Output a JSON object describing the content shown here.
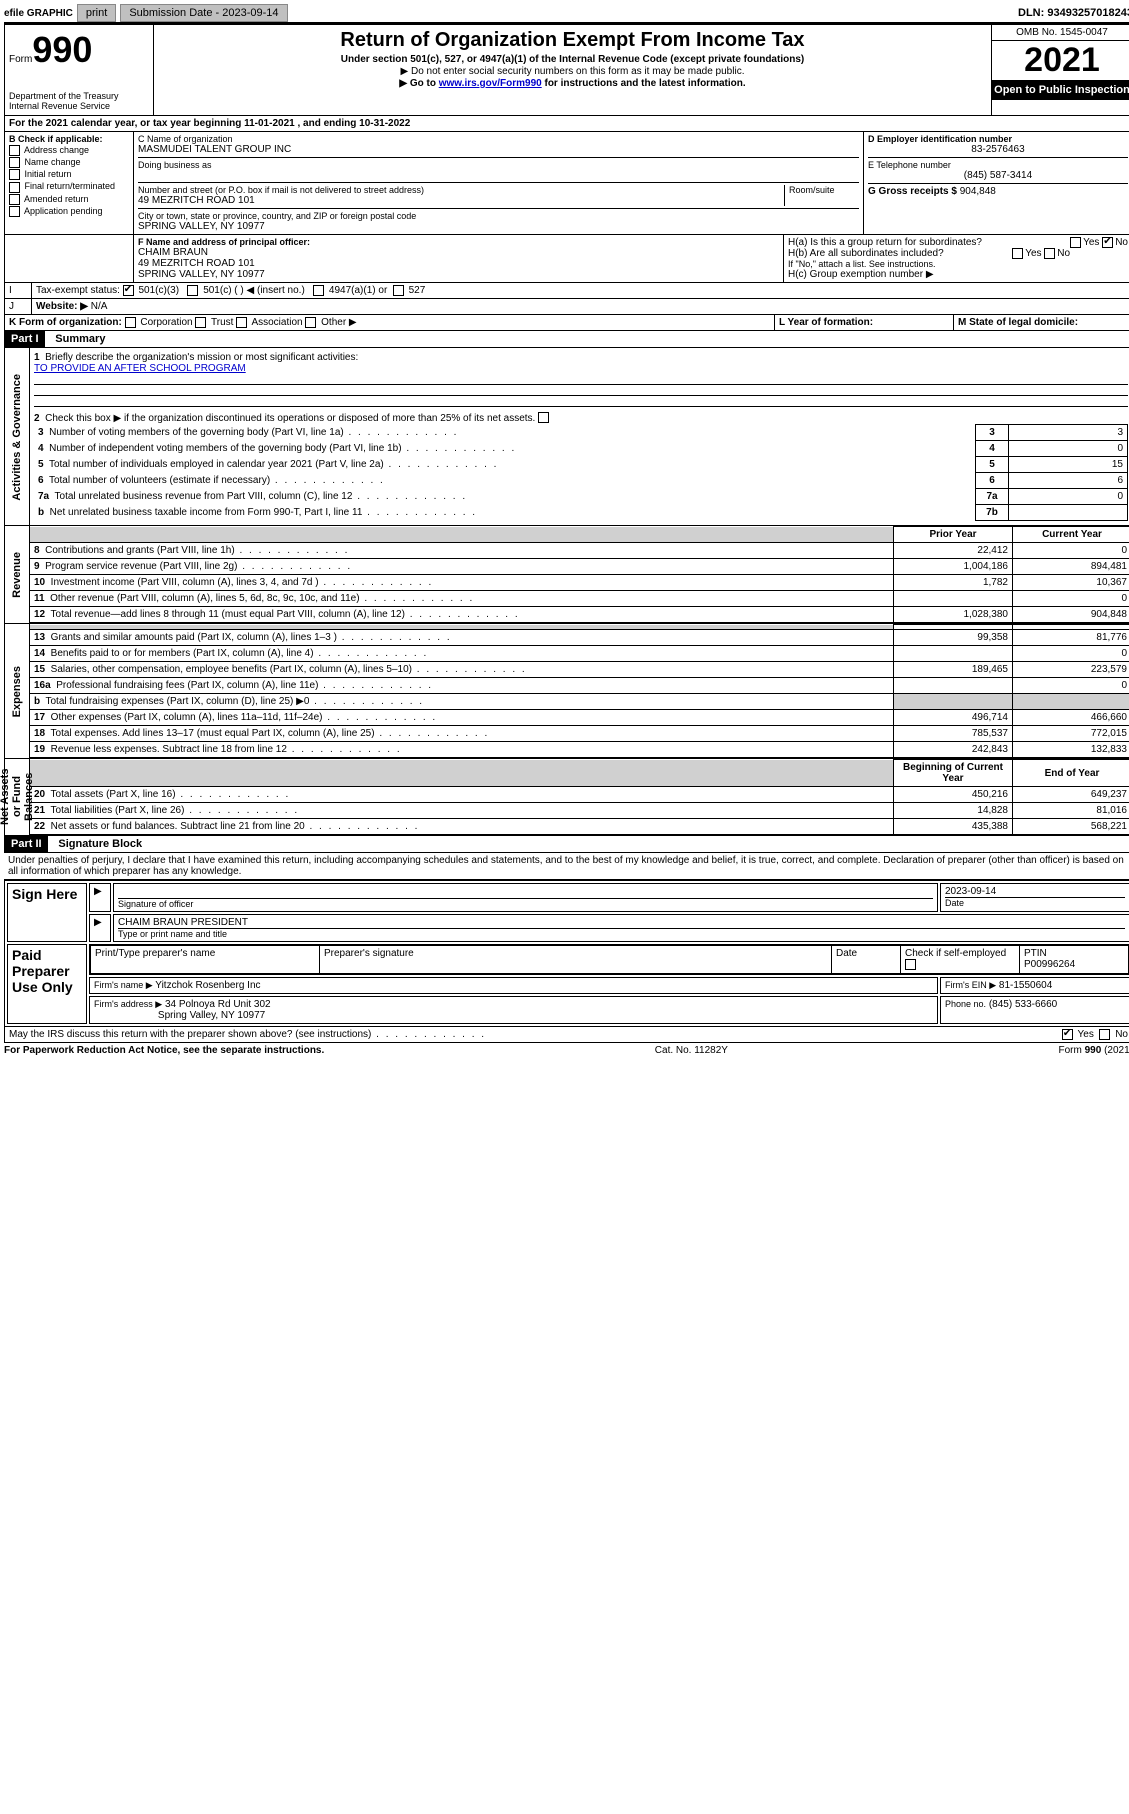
{
  "topbar": {
    "efile": "efile GRAPHIC",
    "print": "print",
    "sub_label": "Submission Date - 2023-09-14",
    "dln": "DLN: 93493257018243"
  },
  "header": {
    "form_word": "Form",
    "form_num": "990",
    "title": "Return of Organization Exempt From Income Tax",
    "sub1": "Under section 501(c), 527, or 4947(a)(1) of the Internal Revenue Code (except private foundations)",
    "sub2": "▶ Do not enter social security numbers on this form as it may be made public.",
    "sub3_pre": "▶ Go to ",
    "sub3_link": "www.irs.gov/Form990",
    "sub3_post": " for instructions and the latest information.",
    "omb": "OMB No. 1545-0047",
    "year": "2021",
    "inspect": "Open to Public Inspection",
    "dept": "Department of the Treasury\nInternal Revenue Service"
  },
  "lineA": "For the 2021 calendar year, or tax year beginning 11-01-2021   , and ending 10-31-2022",
  "boxB": {
    "label": "B Check if applicable:",
    "items": [
      "Address change",
      "Name change",
      "Initial return",
      "Final return/terminated",
      "Amended return",
      "Application pending"
    ]
  },
  "boxC": {
    "label": "C Name of organization",
    "name": "MASMUDEI TALENT GROUP INC",
    "dba_label": "Doing business as",
    "addr_label": "Number and street (or P.O. box if mail is not delivered to street address)",
    "room_label": "Room/suite",
    "addr": "49 MEZRITCH ROAD 101",
    "city_label": "City or town, state or province, country, and ZIP or foreign postal code",
    "city": "SPRING VALLEY, NY  10977"
  },
  "boxD": {
    "label": "D Employer identification number",
    "val": "83-2576463"
  },
  "boxE": {
    "label": "E Telephone number",
    "val": "(845) 587-3414"
  },
  "boxG": {
    "label": "G Gross receipts $",
    "val": "904,848"
  },
  "boxF": {
    "label": "F  Name and address of principal officer:",
    "name": "CHAIM BRAUN",
    "addr1": "49 MEZRITCH ROAD 101",
    "addr2": "SPRING VALLEY, NY  10977"
  },
  "boxH": {
    "a": "H(a)  Is this a group return for subordinates?",
    "b": "H(b)  Are all subordinates included?",
    "b2": "If \"No,\" attach a list. See instructions.",
    "c": "H(c)  Group exemption number ▶",
    "yes": "Yes",
    "no": "No"
  },
  "boxI": {
    "label": "Tax-exempt status:",
    "o1": "501(c)(3)",
    "o2": "501(c) (  ) ◀ (insert no.)",
    "o3": "4947(a)(1) or",
    "o4": "527"
  },
  "boxJ": {
    "label": "Website: ▶",
    "val": "N/A"
  },
  "boxK": {
    "label": "K Form of organization:",
    "o1": "Corporation",
    "o2": "Trust",
    "o3": "Association",
    "o4": "Other ▶"
  },
  "boxL": {
    "label": "L Year of formation:"
  },
  "boxM": {
    "label": "M State of legal domicile:"
  },
  "part1": {
    "hdr": "Part I",
    "title": "Summary"
  },
  "summary": {
    "l1": "Briefly describe the organization's mission or most significant activities:",
    "l1v": "TO PROVIDE AN AFTER SCHOOL PROGRAM",
    "l2": "Check this box ▶        if the organization discontinued its operations or disposed of more than 25% of its net assets.",
    "rows_gov": [
      {
        "n": "3",
        "t": "Number of voting members of the governing body (Part VI, line 1a)",
        "box": "3",
        "v": "3"
      },
      {
        "n": "4",
        "t": "Number of independent voting members of the governing body (Part VI, line 1b)",
        "box": "4",
        "v": "0"
      },
      {
        "n": "5",
        "t": "Total number of individuals employed in calendar year 2021 (Part V, line 2a)",
        "box": "5",
        "v": "15"
      },
      {
        "n": "6",
        "t": "Total number of volunteers (estimate if necessary)",
        "box": "6",
        "v": "6"
      },
      {
        "n": "7a",
        "t": "Total unrelated business revenue from Part VIII, column (C), line 12",
        "box": "7a",
        "v": "0"
      },
      {
        "n": "b",
        "t": "Net unrelated business taxable income from Form 990-T, Part I, line 11",
        "box": "7b",
        "v": ""
      }
    ],
    "col_prior": "Prior Year",
    "col_curr": "Current Year",
    "rows_rev": [
      {
        "n": "8",
        "t": "Contributions and grants (Part VIII, line 1h)",
        "p": "22,412",
        "c": "0"
      },
      {
        "n": "9",
        "t": "Program service revenue (Part VIII, line 2g)",
        "p": "1,004,186",
        "c": "894,481"
      },
      {
        "n": "10",
        "t": "Investment income (Part VIII, column (A), lines 3, 4, and 7d )",
        "p": "1,782",
        "c": "10,367"
      },
      {
        "n": "11",
        "t": "Other revenue (Part VIII, column (A), lines 5, 6d, 8c, 9c, 10c, and 11e)",
        "p": "",
        "c": "0"
      },
      {
        "n": "12",
        "t": "Total revenue—add lines 8 through 11 (must equal Part VIII, column (A), line 12)",
        "p": "1,028,380",
        "c": "904,848"
      }
    ],
    "rows_exp": [
      {
        "n": "13",
        "t": "Grants and similar amounts paid (Part IX, column (A), lines 1–3 )",
        "p": "99,358",
        "c": "81,776"
      },
      {
        "n": "14",
        "t": "Benefits paid to or for members (Part IX, column (A), line 4)",
        "p": "",
        "c": "0"
      },
      {
        "n": "15",
        "t": "Salaries, other compensation, employee benefits (Part IX, column (A), lines 5–10)",
        "p": "189,465",
        "c": "223,579"
      },
      {
        "n": "16a",
        "t": "Professional fundraising fees (Part IX, column (A), line 11e)",
        "p": "",
        "c": "0"
      },
      {
        "n": "b",
        "t": "Total fundraising expenses (Part IX, column (D), line 25) ▶0",
        "p": "shade",
        "c": "shade"
      },
      {
        "n": "17",
        "t": "Other expenses (Part IX, column (A), lines 11a–11d, 11f–24e)",
        "p": "496,714",
        "c": "466,660"
      },
      {
        "n": "18",
        "t": "Total expenses. Add lines 13–17 (must equal Part IX, column (A), line 25)",
        "p": "785,537",
        "c": "772,015"
      },
      {
        "n": "19",
        "t": "Revenue less expenses. Subtract line 18 from line 12",
        "p": "242,843",
        "c": "132,833"
      }
    ],
    "col_beg": "Beginning of Current Year",
    "col_end": "End of Year",
    "rows_net": [
      {
        "n": "20",
        "t": "Total assets (Part X, line 16)",
        "p": "450,216",
        "c": "649,237"
      },
      {
        "n": "21",
        "t": "Total liabilities (Part X, line 26)",
        "p": "14,828",
        "c": "81,016"
      },
      {
        "n": "22",
        "t": "Net assets or fund balances. Subtract line 21 from line 20",
        "p": "435,388",
        "c": "568,221"
      }
    ],
    "side_gov": "Activities & Governance",
    "side_rev": "Revenue",
    "side_exp": "Expenses",
    "side_net": "Net Assets or Fund Balances"
  },
  "part2": {
    "hdr": "Part II",
    "title": "Signature Block"
  },
  "sig": {
    "decl": "Under penalties of perjury, I declare that I have examined this return, including accompanying schedules and statements, and to the best of my knowledge and belief, it is true, correct, and complete. Declaration of preparer (other than officer) is based on all information of which preparer has any knowledge.",
    "sign_here": "Sign Here",
    "sig_officer": "Signature of officer",
    "date": "2023-09-14",
    "date_lbl": "Date",
    "name_title": "CHAIM BRAUN  PRESIDENT",
    "name_title_lbl": "Type or print name and title",
    "paid": "Paid Preparer Use Only",
    "pt_name_lbl": "Print/Type preparer's name",
    "pt_sig_lbl": "Preparer's signature",
    "pt_date_lbl": "Date",
    "pt_check": "Check       if self-employed",
    "ptin_lbl": "PTIN",
    "ptin": "P00996264",
    "firm_name_lbl": "Firm's name    ▶",
    "firm_name": "Yitzchok Rosenberg Inc",
    "firm_ein_lbl": "Firm's EIN ▶",
    "firm_ein": "81-1550604",
    "firm_addr_lbl": "Firm's address ▶",
    "firm_addr1": "34 Polnoya Rd Unit 302",
    "firm_addr2": "Spring Valley, NY  10977",
    "phone_lbl": "Phone no.",
    "phone": "(845) 533-6660",
    "discuss": "May the IRS discuss this return with the preparer shown above? (see instructions)",
    "yes": "Yes",
    "no": "No"
  },
  "footer": {
    "pra": "For Paperwork Reduction Act Notice, see the separate instructions.",
    "cat": "Cat. No. 11282Y",
    "form": "Form 990 (2021)"
  }
}
